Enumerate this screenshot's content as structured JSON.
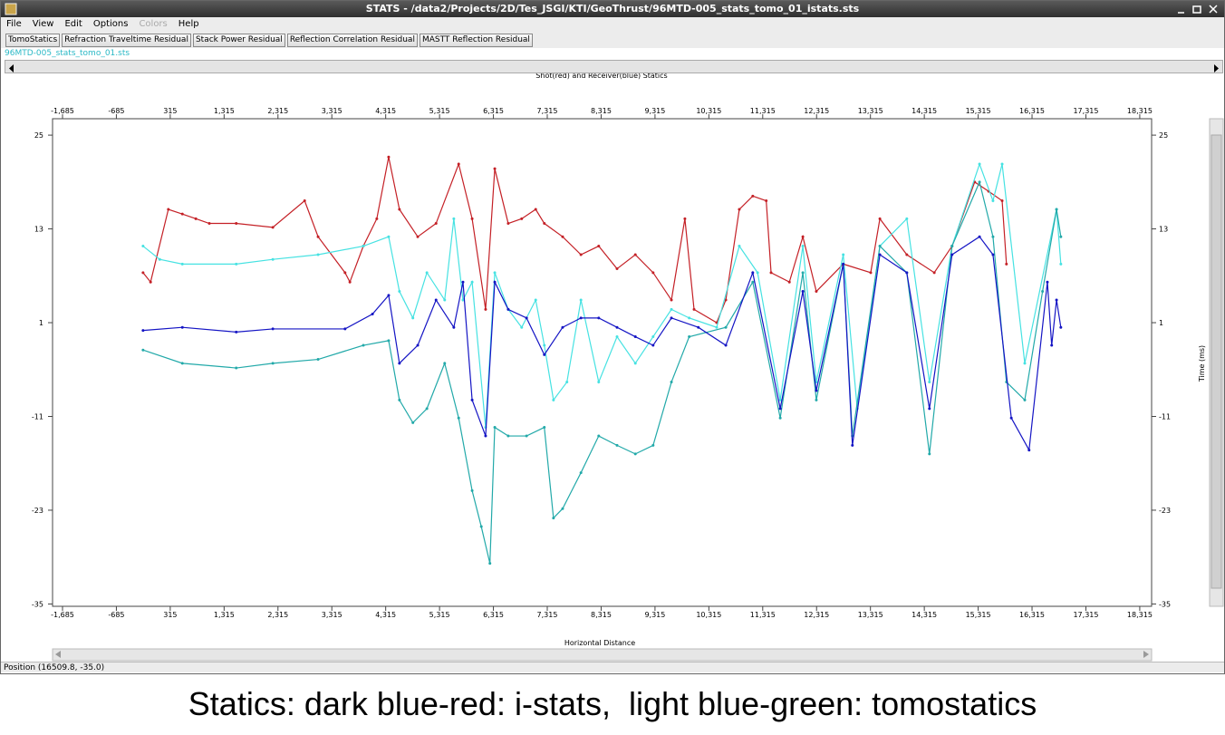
{
  "window": {
    "title": "STATS - /data2/Projects/2D/Tes_JSGI/KTI/GeoThrust/96MTD-005_stats_tomo_01_istats.sts",
    "menu": [
      "File",
      "View",
      "Edit",
      "Options",
      "Colors",
      "Help"
    ],
    "toolbar": [
      "TomoStatics",
      "Refraction Traveltime Residual",
      "Stack Power Residual",
      "Reflection Correlation Residual",
      "MASTT Reflection Residual"
    ],
    "file_label": "96MTD-005_stats_tomo_01.sts",
    "status": "Position (16509.8, -35.0)"
  },
  "chart_data": {
    "type": "line",
    "title": "Shot(red) and Receiver(blue) Statics",
    "xlabel": "Horizontal Distance",
    "ylabel": "Time (ms)",
    "xlim": [
      -1870,
      18535
    ],
    "ylim": [
      -35.3,
      27.1
    ],
    "xticks": [
      {
        "value": -1685,
        "label": "-1,685"
      },
      -685,
      315,
      {
        "value": 1315,
        "label": "1,315"
      },
      {
        "value": 2315,
        "label": "2,315"
      },
      {
        "value": 3315,
        "label": "3,315"
      },
      {
        "value": 4315,
        "label": "4,315"
      },
      {
        "value": 5315,
        "label": "5,315"
      },
      {
        "value": 6315,
        "label": "6,315"
      },
      {
        "value": 7315,
        "label": "7,315"
      },
      {
        "value": 8315,
        "label": "8,315"
      },
      {
        "value": 9315,
        "label": "9,315"
      },
      {
        "value": 10315,
        "label": "10,315"
      },
      {
        "value": 11315,
        "label": "11,315"
      },
      {
        "value": 12315,
        "label": "12,315"
      },
      {
        "value": 13315,
        "label": "13,315"
      },
      {
        "value": 14315,
        "label": "14,315"
      },
      {
        "value": 15315,
        "label": "15,315"
      },
      {
        "value": 16315,
        "label": "16,315"
      },
      {
        "value": 17315,
        "label": "17,315"
      },
      {
        "value": 18315,
        "label": "18,315"
      }
    ],
    "yticks": [
      25,
      13,
      1,
      -11,
      -23,
      -35
    ],
    "series": [
      {
        "color": "#c42026",
        "x": [
          -190,
          -50,
          280,
          540,
          790,
          1040,
          1540,
          2220,
          2810,
          3060,
          3560,
          3650,
          3900,
          4150,
          4370,
          4570,
          4910,
          5250,
          5670,
          5920,
          6170,
          6340,
          6590,
          6840,
          7100,
          7260,
          7600,
          7940,
          8270,
          8610,
          8950,
          9280,
          9620,
          9870,
          10040,
          10460,
          10630,
          10880,
          11130,
          11380,
          11470,
          11810,
          12060,
          12310,
          12810,
          13320,
          13490,
          13990,
          14500,
          14830,
          15250,
          15510,
          15760,
          15840
        ],
        "values": [
          7.4,
          6.2,
          15.5,
          14.9,
          14.3,
          13.7,
          13.7,
          13.2,
          16.6,
          12.0,
          7.4,
          6.2,
          10.8,
          14.3,
          22.2,
          15.5,
          12.0,
          13.7,
          21.3,
          14.3,
          2.7,
          20.7,
          13.7,
          14.3,
          15.5,
          13.7,
          12.0,
          9.7,
          10.8,
          7.9,
          9.7,
          7.4,
          3.9,
          14.3,
          2.7,
          1.0,
          3.9,
          15.5,
          17.2,
          16.6,
          7.4,
          6.2,
          12.0,
          5.0,
          8.5,
          7.4,
          14.3,
          9.7,
          7.4,
          10.8,
          19.0,
          17.8,
          16.6,
          8.5
        ]
      },
      {
        "color": "#46e2e2",
        "x": [
          -190,
          120,
          540,
          1540,
          2220,
          3060,
          3900,
          4370,
          4570,
          4820,
          5080,
          5410,
          5580,
          5750,
          5920,
          6170,
          6340,
          6590,
          6840,
          7100,
          7260,
          7430,
          7680,
          7940,
          8270,
          8610,
          8950,
          9280,
          9620,
          9950,
          10460,
          10880,
          11220,
          11640,
          12060,
          12310,
          12810,
          13070,
          13490,
          13990,
          14410,
          14830,
          15340,
          15590,
          15760,
          16180,
          16770,
          16850
        ],
        "values": [
          10.8,
          9.1,
          8.5,
          8.5,
          9.1,
          9.7,
          10.8,
          12.0,
          5.0,
          1.6,
          7.4,
          3.9,
          14.3,
          3.9,
          6.2,
          -12.4,
          7.4,
          2.7,
          0.4,
          3.9,
          -1.9,
          -8.9,
          -6.6,
          3.9,
          -6.6,
          -0.8,
          -4.2,
          -0.8,
          2.7,
          1.6,
          0.4,
          10.8,
          7.4,
          -8.9,
          10.8,
          -6.6,
          9.7,
          -10.0,
          10.8,
          14.3,
          -6.6,
          10.8,
          21.3,
          16.6,
          21.3,
          -4.2,
          15.5,
          8.5
        ]
      },
      {
        "color": "#22a9a9",
        "x": [
          -190,
          540,
          1540,
          2220,
          3060,
          3900,
          4370,
          4570,
          4820,
          5080,
          5410,
          5670,
          5920,
          6090,
          6250,
          6340,
          6590,
          6930,
          7260,
          7430,
          7600,
          7940,
          8270,
          8610,
          8950,
          9280,
          9620,
          9950,
          10630,
          11130,
          11640,
          12060,
          12310,
          12810,
          12980,
          13490,
          13990,
          14410,
          14830,
          15340,
          15590,
          15840,
          16180,
          16510,
          16770,
          16850
        ],
        "values": [
          -2.5,
          -4.2,
          -4.8,
          -4.2,
          -3.7,
          -1.9,
          -1.3,
          -8.9,
          -11.8,
          -10.0,
          -4.2,
          -11.2,
          -20.5,
          -25.1,
          -29.8,
          -12.4,
          -13.5,
          -13.5,
          -12.4,
          -24.0,
          -22.8,
          -18.2,
          -13.5,
          -14.7,
          -15.8,
          -14.7,
          -6.6,
          -0.8,
          0.4,
          6.2,
          -11.2,
          7.4,
          -8.9,
          8.5,
          -13.5,
          10.8,
          7.4,
          -15.8,
          10.8,
          19.0,
          12.0,
          -6.6,
          -8.9,
          5.0,
          15.5,
          12.0
        ]
      },
      {
        "color": "#1414c4",
        "x": [
          -190,
          540,
          1540,
          2220,
          3560,
          4070,
          4370,
          4570,
          4910,
          5250,
          5580,
          5750,
          5920,
          6170,
          6340,
          6590,
          6930,
          7260,
          7600,
          7940,
          8270,
          8610,
          8950,
          9280,
          9620,
          10120,
          10630,
          11130,
          11640,
          12060,
          12310,
          12810,
          12980,
          13490,
          13990,
          14410,
          14830,
          15340,
          15590,
          15930,
          16260,
          16600,
          16680,
          16770,
          16850
        ],
        "values": [
          0.0,
          0.4,
          -0.2,
          0.2,
          0.2,
          2.1,
          4.5,
          -4.2,
          -1.9,
          3.9,
          0.4,
          6.2,
          -8.9,
          -13.5,
          6.2,
          2.7,
          1.6,
          -3.1,
          0.4,
          1.6,
          1.6,
          0.4,
          -0.8,
          -1.9,
          1.6,
          0.4,
          -1.9,
          7.4,
          -10.0,
          5.0,
          -7.7,
          8.5,
          -14.7,
          9.7,
          7.4,
          -10.0,
          9.7,
          12.0,
          9.7,
          -11.2,
          -15.3,
          6.2,
          -1.9,
          3.9,
          0.4
        ]
      }
    ]
  },
  "caption": "Statics: dark blue-red: i-stats,  light blue-green: tomostatics"
}
